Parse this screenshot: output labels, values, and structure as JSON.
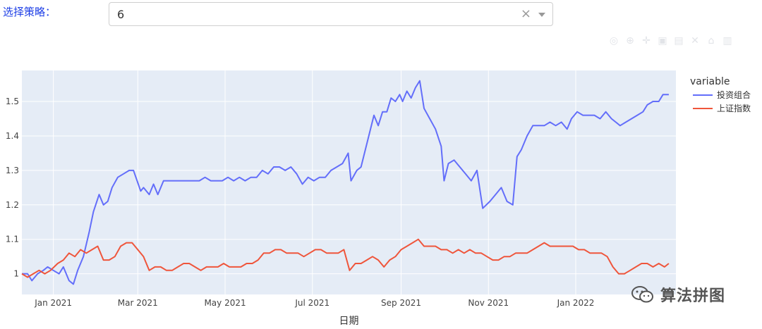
{
  "selector": {
    "label": "选择策略：",
    "value": "6",
    "clear_glyph": "×"
  },
  "modebar": {
    "icons": [
      "camera-icon",
      "zoom-icon",
      "pan-icon",
      "zoom-in-icon",
      "zoom-out-icon",
      "autoscale-icon",
      "reset-axes-icon",
      "plotly-logo-icon"
    ]
  },
  "watermark": {
    "text": "算法拼图"
  },
  "chart_data": {
    "type": "line",
    "xlabel": "日期",
    "ylabel": "",
    "x_range": [
      "2020-12-10",
      "2022-03-12"
    ],
    "ylim": [
      0.94,
      1.59
    ],
    "y_ticks": [
      1,
      1.1,
      1.2,
      1.3,
      1.4,
      1.5
    ],
    "x_ticks": [
      {
        "date": "2021-01-01",
        "label": "Jan 2021"
      },
      {
        "date": "2021-03-01",
        "label": "Mar 2021"
      },
      {
        "date": "2021-05-01",
        "label": "May 2021"
      },
      {
        "date": "2021-07-01",
        "label": "Jul 2021"
      },
      {
        "date": "2021-09-01",
        "label": "Sep 2021"
      },
      {
        "date": "2021-11-01",
        "label": "Nov 2021"
      },
      {
        "date": "2022-01-01",
        "label": "Jan 2022"
      }
    ],
    "grid": true,
    "legend": {
      "title": "variable",
      "placement": "right"
    },
    "series": [
      {
        "name": "投资组合",
        "color": "#636efa",
        "points": [
          [
            "2020-12-10",
            1.0
          ],
          [
            "2020-12-14",
            1.0
          ],
          [
            "2020-12-17",
            0.98
          ],
          [
            "2020-12-21",
            1.0
          ],
          [
            "2020-12-25",
            1.01
          ],
          [
            "2020-12-28",
            1.02
          ],
          [
            "2021-01-01",
            1.01
          ],
          [
            "2021-01-05",
            1.0
          ],
          [
            "2021-01-08",
            1.02
          ],
          [
            "2021-01-12",
            0.98
          ],
          [
            "2021-01-15",
            0.97
          ],
          [
            "2021-01-18",
            1.01
          ],
          [
            "2021-01-22",
            1.05
          ],
          [
            "2021-01-26",
            1.12
          ],
          [
            "2021-01-29",
            1.18
          ],
          [
            "2021-02-02",
            1.23
          ],
          [
            "2021-02-05",
            1.2
          ],
          [
            "2021-02-08",
            1.21
          ],
          [
            "2021-02-11",
            1.25
          ],
          [
            "2021-02-15",
            1.28
          ],
          [
            "2021-02-19",
            1.29
          ],
          [
            "2021-02-23",
            1.3
          ],
          [
            "2021-02-26",
            1.3
          ],
          [
            "2021-03-03",
            1.24
          ],
          [
            "2021-03-05",
            1.25
          ],
          [
            "2021-03-09",
            1.23
          ],
          [
            "2021-03-12",
            1.26
          ],
          [
            "2021-03-15",
            1.23
          ],
          [
            "2021-03-19",
            1.27
          ],
          [
            "2021-03-23",
            1.27
          ],
          [
            "2021-03-27",
            1.27
          ],
          [
            "2021-04-01",
            1.27
          ],
          [
            "2021-04-05",
            1.27
          ],
          [
            "2021-04-09",
            1.27
          ],
          [
            "2021-04-13",
            1.27
          ],
          [
            "2021-04-17",
            1.28
          ],
          [
            "2021-04-21",
            1.27
          ],
          [
            "2021-04-25",
            1.27
          ],
          [
            "2021-04-29",
            1.27
          ],
          [
            "2021-05-03",
            1.28
          ],
          [
            "2021-05-07",
            1.27
          ],
          [
            "2021-05-11",
            1.28
          ],
          [
            "2021-05-15",
            1.27
          ],
          [
            "2021-05-19",
            1.28
          ],
          [
            "2021-05-23",
            1.28
          ],
          [
            "2021-05-27",
            1.3
          ],
          [
            "2021-05-31",
            1.29
          ],
          [
            "2021-06-04",
            1.31
          ],
          [
            "2021-06-08",
            1.31
          ],
          [
            "2021-06-12",
            1.3
          ],
          [
            "2021-06-16",
            1.31
          ],
          [
            "2021-06-20",
            1.29
          ],
          [
            "2021-06-24",
            1.26
          ],
          [
            "2021-06-28",
            1.28
          ],
          [
            "2021-07-02",
            1.27
          ],
          [
            "2021-07-06",
            1.28
          ],
          [
            "2021-07-10",
            1.28
          ],
          [
            "2021-07-14",
            1.3
          ],
          [
            "2021-07-18",
            1.31
          ],
          [
            "2021-07-22",
            1.32
          ],
          [
            "2021-07-26",
            1.35
          ],
          [
            "2021-07-28",
            1.27
          ],
          [
            "2021-08-01",
            1.3
          ],
          [
            "2021-08-04",
            1.31
          ],
          [
            "2021-08-07",
            1.36
          ],
          [
            "2021-08-10",
            1.41
          ],
          [
            "2021-08-13",
            1.46
          ],
          [
            "2021-08-16",
            1.43
          ],
          [
            "2021-08-19",
            1.47
          ],
          [
            "2021-08-22",
            1.47
          ],
          [
            "2021-08-25",
            1.51
          ],
          [
            "2021-08-28",
            1.5
          ],
          [
            "2021-08-31",
            1.52
          ],
          [
            "2021-09-02",
            1.5
          ],
          [
            "2021-09-05",
            1.53
          ],
          [
            "2021-09-08",
            1.51
          ],
          [
            "2021-09-11",
            1.54
          ],
          [
            "2021-09-14",
            1.56
          ],
          [
            "2021-09-17",
            1.48
          ],
          [
            "2021-09-21",
            1.45
          ],
          [
            "2021-09-25",
            1.42
          ],
          [
            "2021-09-29",
            1.37
          ],
          [
            "2021-10-01",
            1.27
          ],
          [
            "2021-10-04",
            1.32
          ],
          [
            "2021-10-08",
            1.33
          ],
          [
            "2021-10-12",
            1.31
          ],
          [
            "2021-10-16",
            1.29
          ],
          [
            "2021-10-20",
            1.27
          ],
          [
            "2021-10-24",
            1.3
          ],
          [
            "2021-10-28",
            1.19
          ],
          [
            "2021-11-02",
            1.21
          ],
          [
            "2021-11-06",
            1.23
          ],
          [
            "2021-11-10",
            1.25
          ],
          [
            "2021-11-14",
            1.21
          ],
          [
            "2021-11-18",
            1.2
          ],
          [
            "2021-11-21",
            1.34
          ],
          [
            "2021-11-24",
            1.36
          ],
          [
            "2021-11-28",
            1.4
          ],
          [
            "2021-12-02",
            1.43
          ],
          [
            "2021-12-06",
            1.43
          ],
          [
            "2021-12-10",
            1.43
          ],
          [
            "2021-12-14",
            1.44
          ],
          [
            "2021-12-18",
            1.43
          ],
          [
            "2021-12-22",
            1.44
          ],
          [
            "2021-12-26",
            1.42
          ],
          [
            "2021-12-29",
            1.45
          ],
          [
            "2022-01-02",
            1.47
          ],
          [
            "2022-01-06",
            1.46
          ],
          [
            "2022-01-10",
            1.46
          ],
          [
            "2022-01-14",
            1.46
          ],
          [
            "2022-01-18",
            1.45
          ],
          [
            "2022-01-22",
            1.47
          ],
          [
            "2022-01-26",
            1.45
          ],
          [
            "2022-01-29",
            1.44
          ],
          [
            "2022-02-01",
            1.43
          ],
          [
            "2022-02-05",
            1.44
          ],
          [
            "2022-02-09",
            1.45
          ],
          [
            "2022-02-13",
            1.46
          ],
          [
            "2022-02-17",
            1.47
          ],
          [
            "2022-02-20",
            1.49
          ],
          [
            "2022-02-24",
            1.5
          ],
          [
            "2022-02-28",
            1.5
          ],
          [
            "2022-03-03",
            1.52
          ],
          [
            "2022-03-07",
            1.52
          ]
        ]
      },
      {
        "name": "上证指数",
        "color": "#ef553b",
        "points": [
          [
            "2020-12-10",
            1.0
          ],
          [
            "2020-12-14",
            0.99
          ],
          [
            "2020-12-18",
            1.0
          ],
          [
            "2020-12-22",
            1.01
          ],
          [
            "2020-12-26",
            1.0
          ],
          [
            "2020-12-30",
            1.01
          ],
          [
            "2021-01-04",
            1.03
          ],
          [
            "2021-01-08",
            1.04
          ],
          [
            "2021-01-12",
            1.06
          ],
          [
            "2021-01-16",
            1.05
          ],
          [
            "2021-01-20",
            1.07
          ],
          [
            "2021-01-24",
            1.06
          ],
          [
            "2021-01-28",
            1.07
          ],
          [
            "2021-02-01",
            1.08
          ],
          [
            "2021-02-05",
            1.04
          ],
          [
            "2021-02-09",
            1.04
          ],
          [
            "2021-02-13",
            1.05
          ],
          [
            "2021-02-17",
            1.08
          ],
          [
            "2021-02-21",
            1.09
          ],
          [
            "2021-02-25",
            1.09
          ],
          [
            "2021-03-01",
            1.07
          ],
          [
            "2021-03-05",
            1.05
          ],
          [
            "2021-03-09",
            1.01
          ],
          [
            "2021-03-13",
            1.02
          ],
          [
            "2021-03-17",
            1.02
          ],
          [
            "2021-03-21",
            1.01
          ],
          [
            "2021-03-25",
            1.01
          ],
          [
            "2021-03-29",
            1.02
          ],
          [
            "2021-04-02",
            1.03
          ],
          [
            "2021-04-06",
            1.03
          ],
          [
            "2021-04-10",
            1.02
          ],
          [
            "2021-04-14",
            1.01
          ],
          [
            "2021-04-18",
            1.02
          ],
          [
            "2021-04-22",
            1.02
          ],
          [
            "2021-04-26",
            1.02
          ],
          [
            "2021-04-30",
            1.03
          ],
          [
            "2021-05-04",
            1.02
          ],
          [
            "2021-05-08",
            1.02
          ],
          [
            "2021-05-12",
            1.02
          ],
          [
            "2021-05-16",
            1.03
          ],
          [
            "2021-05-20",
            1.03
          ],
          [
            "2021-05-24",
            1.04
          ],
          [
            "2021-05-28",
            1.06
          ],
          [
            "2021-06-01",
            1.06
          ],
          [
            "2021-06-05",
            1.07
          ],
          [
            "2021-06-09",
            1.07
          ],
          [
            "2021-06-13",
            1.06
          ],
          [
            "2021-06-17",
            1.06
          ],
          [
            "2021-06-21",
            1.06
          ],
          [
            "2021-06-25",
            1.05
          ],
          [
            "2021-06-29",
            1.06
          ],
          [
            "2021-07-03",
            1.07
          ],
          [
            "2021-07-07",
            1.07
          ],
          [
            "2021-07-11",
            1.06
          ],
          [
            "2021-07-15",
            1.06
          ],
          [
            "2021-07-19",
            1.06
          ],
          [
            "2021-07-23",
            1.07
          ],
          [
            "2021-07-27",
            1.01
          ],
          [
            "2021-07-31",
            1.03
          ],
          [
            "2021-08-04",
            1.03
          ],
          [
            "2021-08-08",
            1.04
          ],
          [
            "2021-08-12",
            1.05
          ],
          [
            "2021-08-16",
            1.04
          ],
          [
            "2021-08-20",
            1.02
          ],
          [
            "2021-08-24",
            1.04
          ],
          [
            "2021-08-28",
            1.05
          ],
          [
            "2021-09-01",
            1.07
          ],
          [
            "2021-09-05",
            1.08
          ],
          [
            "2021-09-09",
            1.09
          ],
          [
            "2021-09-13",
            1.1
          ],
          [
            "2021-09-17",
            1.08
          ],
          [
            "2021-09-21",
            1.08
          ],
          [
            "2021-09-25",
            1.08
          ],
          [
            "2021-09-29",
            1.07
          ],
          [
            "2021-10-03",
            1.07
          ],
          [
            "2021-10-07",
            1.06
          ],
          [
            "2021-10-11",
            1.07
          ],
          [
            "2021-10-15",
            1.06
          ],
          [
            "2021-10-19",
            1.07
          ],
          [
            "2021-10-23",
            1.06
          ],
          [
            "2021-10-27",
            1.06
          ],
          [
            "2021-10-31",
            1.05
          ],
          [
            "2021-11-04",
            1.04
          ],
          [
            "2021-11-08",
            1.04
          ],
          [
            "2021-11-12",
            1.05
          ],
          [
            "2021-11-16",
            1.05
          ],
          [
            "2021-11-20",
            1.06
          ],
          [
            "2021-11-24",
            1.06
          ],
          [
            "2021-11-28",
            1.06
          ],
          [
            "2021-12-02",
            1.07
          ],
          [
            "2021-12-06",
            1.08
          ],
          [
            "2021-12-10",
            1.09
          ],
          [
            "2021-12-14",
            1.08
          ],
          [
            "2021-12-18",
            1.08
          ],
          [
            "2021-12-22",
            1.08
          ],
          [
            "2021-12-26",
            1.08
          ],
          [
            "2021-12-30",
            1.08
          ],
          [
            "2022-01-03",
            1.07
          ],
          [
            "2022-01-07",
            1.07
          ],
          [
            "2022-01-11",
            1.06
          ],
          [
            "2022-01-15",
            1.06
          ],
          [
            "2022-01-19",
            1.06
          ],
          [
            "2022-01-23",
            1.05
          ],
          [
            "2022-01-27",
            1.02
          ],
          [
            "2022-01-31",
            1.0
          ],
          [
            "2022-02-04",
            1.0
          ],
          [
            "2022-02-08",
            1.01
          ],
          [
            "2022-02-12",
            1.02
          ],
          [
            "2022-02-16",
            1.03
          ],
          [
            "2022-02-20",
            1.03
          ],
          [
            "2022-02-24",
            1.02
          ],
          [
            "2022-02-28",
            1.03
          ],
          [
            "2022-03-04",
            1.02
          ],
          [
            "2022-03-07",
            1.03
          ]
        ]
      }
    ]
  }
}
